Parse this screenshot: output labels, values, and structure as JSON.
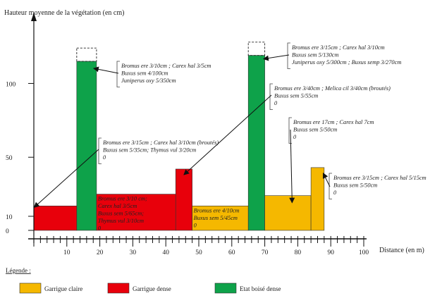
{
  "chart_data": {
    "type": "bar",
    "ylabel": "Hauteur  moyenne de la végétation (en cm)",
    "xlabel": "Distance (en m)",
    "x_ticks": [
      10,
      20,
      30,
      40,
      50,
      60,
      70,
      80,
      90,
      100
    ],
    "y_ticks": [
      0,
      10,
      50,
      100
    ],
    "xlim": [
      0,
      100
    ],
    "grid": false,
    "legend_title": "Légende :",
    "legend": [
      {
        "label": "Garrigue claire",
        "color": "#f5b800"
      },
      {
        "label": "Garrigue dense",
        "color": "#e8000b"
      },
      {
        "label": "Etat boisé dense",
        "color": "#0ea24a"
      }
    ],
    "bars": [
      {
        "x0": 0,
        "x1": 13,
        "value": 17,
        "type": "Garrigue dense"
      },
      {
        "x0": 13,
        "x1": 19,
        "value": 115,
        "dashed_top": 124,
        "type": "Etat boisé dense"
      },
      {
        "x0": 19,
        "x1": 43,
        "value": 25,
        "type": "Garrigue dense",
        "label": [
          "Bromus ere 3/10 cm;",
          "Carex hal 3/5cm",
          "Buxus sem 5/65cm;",
          "Thymus vul 3/10cm",
          "0"
        ]
      },
      {
        "x0": 43,
        "x1": 48,
        "value": 42,
        "type": "Garrigue dense"
      },
      {
        "x0": 48,
        "x1": 65,
        "value": 17,
        "type": "Garrigue claire",
        "label": [
          "Bromus ere 4/10cm",
          "Buxus sem 5/45cm",
          "0"
        ]
      },
      {
        "x0": 65,
        "x1": 70,
        "value": 119,
        "dashed_top": 128,
        "type": "Etat boisé dense"
      },
      {
        "x0": 70,
        "x1": 84,
        "value": 24,
        "type": "Garrigue claire"
      },
      {
        "x0": 84,
        "x1": 88,
        "value": 43,
        "type": "Garrigue claire"
      }
    ],
    "annotations": [
      {
        "lines": [
          "Bromus ere 3/10cm ; Carex hal 3/5cm",
          "Buxus sem 4/100cm",
          "Juniperus oxy 5/350cm"
        ],
        "target_bar": 1
      },
      {
        "lines": [
          "Bromus ere 3/15cm ; Carex hal 3/10cm (broutés)",
          "Buxus sem 5/35cm; Thymus vul 3/20cm",
          "0"
        ],
        "target_bar": 0
      },
      {
        "lines": [
          "Bromus ere 3/15cm ; Carex hal 3/10cm",
          "Buxus sem 5/130cm",
          "Juniperus oxy 5/300cm ; Buxus semp 3/270cm"
        ],
        "target_bar": 5
      },
      {
        "lines": [
          "Bromus ere 3/40cm ; Melica cil 3/40cm (broutés)",
          "Buxus sem 5/55cm",
          "0"
        ],
        "target_bar": 3
      },
      {
        "lines": [
          "Bromus ere 17cm ; Carex hal 7cm",
          "Buxus sem 5/50cm",
          "0"
        ],
        "target_bar": 6
      },
      {
        "lines": [
          "Bromus ere 3/15cm ; Carex hal 5/15cm",
          "Buxus sem 5/50cm",
          "0"
        ],
        "target_bar": 7
      }
    ]
  }
}
